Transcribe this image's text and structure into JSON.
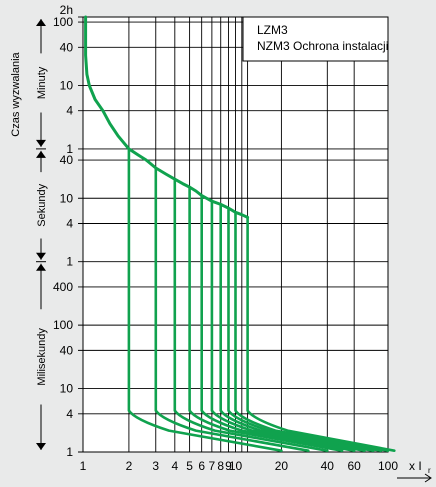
{
  "chart_data": {
    "type": "line",
    "title": "",
    "legend": {
      "lines": [
        "LZM3",
        "NZM3 Ochrona instalacji"
      ],
      "placement": "top-right"
    },
    "y_axis": {
      "label": "Czas wyzwalania",
      "scale": "log",
      "unit_labels": {
        "hours": "2h",
        "minutes": "Minuty",
        "seconds": "Sekundy",
        "milliseconds": "Milisekundy"
      },
      "ticks": [
        {
          "label": "100",
          "seconds": 6000
        },
        {
          "label": "40",
          "seconds": 2400
        },
        {
          "label": "10",
          "seconds": 600
        },
        {
          "label": "4",
          "seconds": 240
        },
        {
          "label": "1",
          "seconds": 60
        },
        {
          "label": "40",
          "seconds": 40
        },
        {
          "label": "10",
          "seconds": 10
        },
        {
          "label": "4",
          "seconds": 4
        },
        {
          "label": "1",
          "seconds": 1
        },
        {
          "label": "400",
          "seconds": 0.4
        },
        {
          "label": "100",
          "seconds": 0.1
        },
        {
          "label": "40",
          "seconds": 0.04
        },
        {
          "label": "10",
          "seconds": 0.01
        },
        {
          "label": "4",
          "seconds": 0.004
        },
        {
          "label": "1",
          "seconds": 0.001
        }
      ],
      "range_seconds": [
        0.001,
        7200
      ]
    },
    "x_axis": {
      "label": "x I",
      "label_subscript": "r",
      "scale": "log",
      "range": [
        1,
        100
      ],
      "ticks": [
        1,
        2,
        3,
        4,
        5,
        6,
        7,
        8,
        9,
        10,
        20,
        40,
        60,
        100
      ],
      "gridlines": [
        1,
        2,
        3,
        4,
        5,
        6,
        7,
        8,
        9,
        10,
        11,
        12,
        20,
        40,
        60,
        100
      ]
    },
    "grid": true,
    "colors": {
      "curve": "#10a24e",
      "grid": "#000000",
      "background": "#e9eaea"
    },
    "series": [
      {
        "points": [
          [
            1.04,
            7200
          ],
          [
            1.04,
            1800
          ],
          [
            1.06,
            900
          ],
          [
            1.1,
            600
          ],
          [
            1.2,
            360
          ],
          [
            1.35,
            240
          ],
          [
            1.5,
            150
          ],
          [
            1.7,
            96
          ],
          [
            2,
            60
          ]
        ]
      },
      {
        "points": [
          [
            2,
            60
          ],
          [
            2.3,
            48
          ],
          [
            2.6,
            40
          ],
          [
            3,
            30
          ],
          [
            3.5,
            24
          ],
          [
            4,
            20
          ],
          [
            4.5,
            17
          ],
          [
            5,
            15
          ],
          [
            5.5,
            13
          ],
          [
            6,
            11
          ],
          [
            7,
            9
          ],
          [
            8,
            8
          ],
          [
            9,
            7
          ],
          [
            10,
            6
          ],
          [
            11,
            5.5
          ],
          [
            12,
            5
          ]
        ]
      },
      {
        "trips": [
          {
            "x": 2,
            "from": 60,
            "to": 0.0045,
            "end": 20
          },
          {
            "x": 3,
            "from": 30,
            "to": 0.0045,
            "end": 30
          },
          {
            "x": 4,
            "from": 20,
            "to": 0.0045,
            "end": 40
          },
          {
            "x": 5,
            "from": 15,
            "to": 0.0045,
            "end": 50
          },
          {
            "x": 6,
            "from": 11,
            "to": 0.0045,
            "end": 60
          },
          {
            "x": 7,
            "from": 9,
            "to": 0.0045,
            "end": 70
          },
          {
            "x": 8,
            "from": 8,
            "to": 0.0045,
            "end": 80
          },
          {
            "x": 9,
            "from": 7,
            "to": 0.0045,
            "end": 90
          },
          {
            "x": 10,
            "from": 6,
            "to": 0.0045,
            "end": 100
          },
          {
            "x": 12,
            "from": 5,
            "to": 0.0045,
            "end": 110
          }
        ]
      }
    ]
  }
}
